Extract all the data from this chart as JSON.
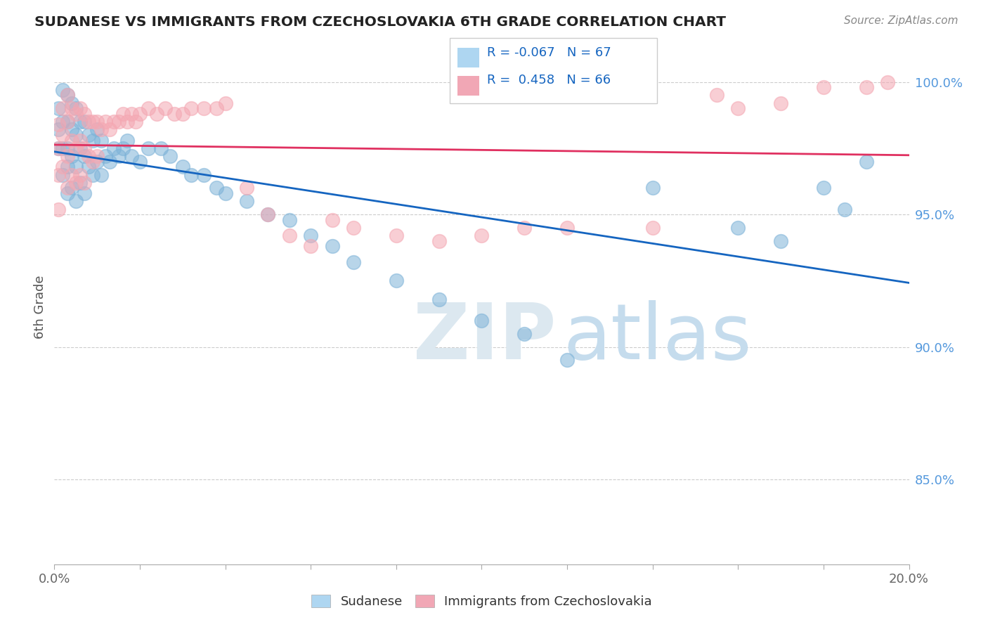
{
  "title": "SUDANESE VS IMMIGRANTS FROM CZECHOSLOVAKIA 6TH GRADE CORRELATION CHART",
  "source_text": "Source: ZipAtlas.com",
  "ylabel": "6th Grade",
  "xlim": [
    0.0,
    0.2
  ],
  "ylim": [
    0.818,
    1.012
  ],
  "yticks": [
    0.85,
    0.9,
    0.95,
    1.0
  ],
  "ytick_labels": [
    "85.0%",
    "90.0%",
    "95.0%",
    "100.0%"
  ],
  "xticks": [
    0.0,
    0.02,
    0.04,
    0.06,
    0.08,
    0.1,
    0.12,
    0.14,
    0.16,
    0.18,
    0.2
  ],
  "xtick_labels": [
    "0.0%",
    "",
    "",
    "",
    "",
    "",
    "",
    "",
    "",
    "",
    "20.0%"
  ],
  "blue_color": "#7EB3D8",
  "pink_color": "#F4A7B2",
  "trend_blue": "#1565C0",
  "trend_pink": "#E03060",
  "legend_box_blue": "#AED6F1",
  "legend_box_pink": "#F1A7B5",
  "R_blue": -0.067,
  "N_blue": 67,
  "R_pink": 0.458,
  "N_pink": 66,
  "blue_points_x": [
    0.001,
    0.001,
    0.001,
    0.002,
    0.002,
    0.002,
    0.002,
    0.003,
    0.003,
    0.003,
    0.003,
    0.003,
    0.004,
    0.004,
    0.004,
    0.004,
    0.005,
    0.005,
    0.005,
    0.005,
    0.006,
    0.006,
    0.006,
    0.007,
    0.007,
    0.007,
    0.008,
    0.008,
    0.009,
    0.009,
    0.01,
    0.01,
    0.011,
    0.011,
    0.012,
    0.013,
    0.014,
    0.015,
    0.016,
    0.017,
    0.018,
    0.02,
    0.022,
    0.025,
    0.027,
    0.03,
    0.032,
    0.035,
    0.038,
    0.04,
    0.045,
    0.05,
    0.055,
    0.06,
    0.065,
    0.07,
    0.08,
    0.09,
    0.1,
    0.11,
    0.12,
    0.14,
    0.16,
    0.17,
    0.18,
    0.185,
    0.19
  ],
  "blue_points_y": [
    0.99,
    0.982,
    0.975,
    0.997,
    0.985,
    0.975,
    0.965,
    0.995,
    0.985,
    0.975,
    0.968,
    0.958,
    0.992,
    0.982,
    0.972,
    0.96,
    0.99,
    0.98,
    0.968,
    0.955,
    0.985,
    0.975,
    0.962,
    0.985,
    0.972,
    0.958,
    0.98,
    0.968,
    0.978,
    0.965,
    0.982,
    0.97,
    0.978,
    0.965,
    0.972,
    0.97,
    0.975,
    0.972,
    0.975,
    0.978,
    0.972,
    0.97,
    0.975,
    0.975,
    0.972,
    0.968,
    0.965,
    0.965,
    0.96,
    0.958,
    0.955,
    0.95,
    0.948,
    0.942,
    0.938,
    0.932,
    0.925,
    0.918,
    0.91,
    0.905,
    0.895,
    0.96,
    0.945,
    0.94,
    0.96,
    0.952,
    0.97
  ],
  "pink_points_x": [
    0.001,
    0.001,
    0.001,
    0.001,
    0.002,
    0.002,
    0.002,
    0.003,
    0.003,
    0.003,
    0.003,
    0.004,
    0.004,
    0.004,
    0.005,
    0.005,
    0.005,
    0.006,
    0.006,
    0.006,
    0.007,
    0.007,
    0.007,
    0.008,
    0.008,
    0.009,
    0.009,
    0.01,
    0.01,
    0.011,
    0.012,
    0.013,
    0.014,
    0.015,
    0.016,
    0.017,
    0.018,
    0.019,
    0.02,
    0.022,
    0.024,
    0.026,
    0.028,
    0.03,
    0.032,
    0.035,
    0.038,
    0.04,
    0.045,
    0.05,
    0.055,
    0.06,
    0.065,
    0.07,
    0.08,
    0.09,
    0.1,
    0.11,
    0.12,
    0.14,
    0.155,
    0.16,
    0.17,
    0.18,
    0.19,
    0.195
  ],
  "pink_points_y": [
    0.984,
    0.975,
    0.965,
    0.952,
    0.99,
    0.98,
    0.968,
    0.995,
    0.985,
    0.972,
    0.96,
    0.99,
    0.978,
    0.965,
    0.988,
    0.975,
    0.962,
    0.99,
    0.978,
    0.965,
    0.988,
    0.975,
    0.962,
    0.985,
    0.972,
    0.985,
    0.97,
    0.985,
    0.972,
    0.982,
    0.985,
    0.982,
    0.985,
    0.985,
    0.988,
    0.985,
    0.988,
    0.985,
    0.988,
    0.99,
    0.988,
    0.99,
    0.988,
    0.988,
    0.99,
    0.99,
    0.99,
    0.992,
    0.96,
    0.95,
    0.942,
    0.938,
    0.948,
    0.945,
    0.942,
    0.94,
    0.942,
    0.945,
    0.945,
    0.945,
    0.995,
    0.99,
    0.992,
    0.998,
    0.998,
    1.0
  ]
}
